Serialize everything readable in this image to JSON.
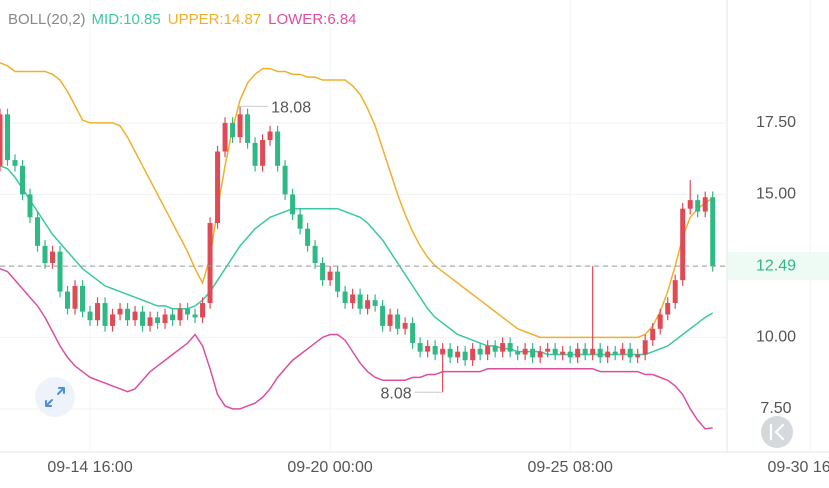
{
  "chart_data": {
    "type": "candlestick",
    "indicator": "BOLL(20,2)",
    "up_color": "#e04a55",
    "down_color": "#2fb985",
    "x": [
      0,
      1,
      2,
      3,
      4,
      5,
      6,
      7,
      8,
      9,
      10,
      11,
      12,
      13,
      14,
      15,
      16,
      17,
      18,
      19,
      20,
      21,
      22,
      23,
      24,
      25,
      26,
      27,
      28,
      29,
      30,
      31,
      32,
      33,
      34,
      35,
      36,
      37,
      38,
      39,
      40,
      41,
      42,
      43,
      44,
      45,
      46,
      47,
      48,
      49,
      50,
      51,
      52,
      53,
      54,
      55,
      56,
      57,
      58,
      59,
      60,
      61,
      62,
      63,
      64,
      65,
      66,
      67,
      68,
      69,
      70,
      71,
      72,
      73,
      74,
      75,
      76,
      77,
      78,
      79,
      80,
      81,
      82,
      83,
      84,
      85,
      86,
      87,
      88,
      89,
      90,
      91,
      92,
      93,
      94,
      95
    ],
    "open": [
      16.0,
      17.8,
      16.2,
      16.0,
      15.0,
      14.2,
      13.2,
      12.6,
      13.0,
      11.6,
      11.0,
      11.8,
      10.9,
      10.6,
      11.2,
      10.4,
      10.8,
      11.0,
      10.6,
      10.9,
      10.4,
      10.7,
      10.5,
      10.8,
      10.6,
      11.0,
      10.8,
      10.7,
      11.2,
      14.0,
      16.5,
      17.5,
      17.0,
      17.8,
      16.8,
      16.0,
      16.9,
      17.2,
      16.0,
      15.0,
      14.3,
      13.8,
      13.2,
      12.6,
      12.0,
      12.3,
      11.6,
      11.2,
      11.5,
      11.0,
      11.3,
      11.1,
      10.4,
      10.8,
      10.3,
      10.5,
      9.8,
      9.5,
      9.7,
      9.4,
      9.6,
      9.3,
      9.5,
      9.2,
      9.6,
      9.4,
      9.7,
      9.5,
      9.8,
      9.5,
      9.4,
      9.6,
      9.3,
      9.5,
      9.6,
      9.4,
      9.5,
      9.3,
      9.6,
      9.4,
      9.6,
      9.3,
      9.5,
      9.4,
      9.6,
      9.3,
      9.4,
      9.9,
      10.3,
      10.8,
      11.2,
      12.0,
      14.5,
      14.8,
      14.4,
      14.9
    ],
    "high": [
      18.0,
      18.0,
      16.4,
      16.2,
      15.2,
      14.4,
      13.4,
      13.2,
      13.2,
      11.8,
      12.0,
      12.0,
      11.1,
      11.4,
      11.4,
      11.0,
      11.2,
      11.2,
      11.1,
      11.1,
      10.9,
      10.9,
      11.0,
      11.0,
      11.2,
      11.2,
      11.0,
      11.4,
      14.2,
      16.7,
      17.7,
      17.7,
      18.08,
      18.0,
      17.0,
      17.1,
      17.4,
      17.4,
      16.2,
      15.2,
      14.5,
      14.0,
      13.4,
      12.8,
      12.5,
      12.5,
      11.8,
      11.7,
      11.7,
      11.5,
      11.5,
      11.3,
      11.0,
      11.0,
      10.7,
      10.7,
      10.0,
      9.9,
      9.9,
      9.8,
      9.8,
      9.7,
      9.7,
      9.8,
      9.8,
      9.9,
      9.9,
      10.0,
      10.0,
      9.7,
      9.8,
      9.8,
      9.7,
      9.8,
      9.8,
      9.7,
      9.7,
      9.8,
      9.8,
      12.49,
      9.8,
      9.7,
      9.7,
      9.8,
      9.8,
      9.6,
      10.1,
      10.5,
      11.0,
      11.4,
      12.2,
      14.7,
      15.5,
      15.0,
      15.1,
      15.1
    ],
    "low": [
      15.8,
      16.0,
      15.8,
      14.8,
      14.0,
      13.0,
      12.4,
      12.4,
      11.4,
      10.8,
      10.8,
      10.7,
      10.4,
      10.4,
      10.2,
      10.2,
      10.6,
      10.4,
      10.4,
      10.2,
      10.2,
      10.3,
      10.3,
      10.4,
      10.4,
      10.6,
      10.5,
      10.5,
      11.0,
      13.8,
      16.3,
      16.8,
      16.8,
      16.6,
      15.8,
      15.8,
      16.7,
      15.8,
      14.8,
      14.1,
      13.6,
      13.0,
      12.4,
      11.8,
      11.8,
      11.4,
      11.0,
      11.0,
      10.8,
      10.8,
      10.9,
      10.2,
      10.2,
      10.1,
      10.1,
      9.6,
      9.3,
      9.3,
      9.2,
      8.08,
      9.1,
      9.1,
      9.0,
      9.0,
      9.2,
      9.2,
      9.3,
      9.3,
      9.3,
      9.2,
      9.2,
      9.1,
      9.1,
      9.3,
      9.2,
      9.2,
      9.1,
      9.1,
      9.2,
      9.2,
      9.1,
      9.1,
      9.2,
      9.2,
      9.1,
      9.1,
      9.2,
      9.7,
      10.1,
      10.6,
      11.0,
      11.8,
      14.3,
      14.2,
      14.2,
      12.3
    ],
    "close": [
      17.8,
      16.2,
      16.0,
      15.0,
      14.2,
      13.2,
      12.6,
      13.0,
      11.6,
      11.0,
      11.8,
      10.9,
      10.6,
      11.2,
      10.4,
      10.8,
      11.0,
      10.6,
      10.9,
      10.4,
      10.7,
      10.5,
      10.8,
      10.6,
      11.0,
      10.8,
      10.7,
      11.2,
      14.0,
      16.5,
      17.5,
      17.0,
      17.8,
      16.8,
      16.0,
      16.9,
      17.2,
      16.0,
      15.0,
      14.3,
      13.8,
      13.2,
      12.6,
      12.0,
      12.3,
      11.6,
      11.2,
      11.5,
      11.0,
      11.3,
      11.1,
      10.4,
      10.8,
      10.3,
      10.5,
      9.8,
      9.5,
      9.7,
      9.4,
      9.6,
      9.3,
      9.5,
      9.2,
      9.6,
      9.4,
      9.7,
      9.5,
      9.8,
      9.5,
      9.4,
      9.6,
      9.3,
      9.5,
      9.6,
      9.4,
      9.5,
      9.3,
      9.6,
      9.4,
      9.6,
      9.3,
      9.5,
      9.4,
      9.6,
      9.3,
      9.4,
      9.9,
      10.3,
      10.8,
      11.2,
      12.0,
      14.5,
      14.8,
      14.4,
      14.9,
      12.49
    ],
    "series": [
      {
        "name": "MID:10.85",
        "color": "#3cc8a4",
        "values": [
          16.0,
          15.9,
          15.6,
          15.2,
          14.8,
          14.4,
          14.0,
          13.6,
          13.3,
          13.0,
          12.7,
          12.4,
          12.2,
          12.0,
          11.8,
          11.7,
          11.6,
          11.5,
          11.4,
          11.3,
          11.2,
          11.1,
          11.1,
          11.0,
          11.0,
          11.0,
          11.1,
          11.3,
          11.6,
          12.0,
          12.4,
          12.8,
          13.2,
          13.5,
          13.8,
          14.0,
          14.2,
          14.3,
          14.4,
          14.5,
          14.5,
          14.5,
          14.5,
          14.5,
          14.5,
          14.5,
          14.4,
          14.3,
          14.2,
          14.0,
          13.7,
          13.4,
          13.0,
          12.6,
          12.2,
          11.8,
          11.4,
          11.0,
          10.7,
          10.5,
          10.3,
          10.1,
          10.0,
          9.9,
          9.8,
          9.7,
          9.7,
          9.6,
          9.6,
          9.5,
          9.5,
          9.5,
          9.5,
          9.4,
          9.4,
          9.4,
          9.4,
          9.4,
          9.4,
          9.4,
          9.4,
          9.4,
          9.4,
          9.4,
          9.4,
          9.4,
          9.4,
          9.5,
          9.6,
          9.7,
          9.9,
          10.1,
          10.3,
          10.5,
          10.7,
          10.85
        ]
      },
      {
        "name": "UPPER:14.87",
        "color": "#efb12c",
        "values": [
          19.6,
          19.5,
          19.3,
          19.3,
          19.3,
          19.3,
          19.3,
          19.2,
          19.0,
          18.6,
          18.1,
          17.6,
          17.5,
          17.5,
          17.5,
          17.5,
          17.4,
          17.0,
          16.5,
          16.0,
          15.5,
          15.0,
          14.5,
          14.0,
          13.5,
          13.0,
          12.4,
          11.9,
          12.8,
          14.5,
          16.0,
          17.3,
          18.3,
          18.9,
          19.2,
          19.4,
          19.4,
          19.3,
          19.3,
          19.2,
          19.2,
          19.1,
          19.1,
          19.0,
          19.0,
          19.0,
          19.0,
          18.8,
          18.5,
          18.0,
          17.4,
          16.6,
          15.8,
          15.0,
          14.3,
          13.7,
          13.2,
          12.8,
          12.5,
          12.3,
          12.1,
          11.9,
          11.7,
          11.5,
          11.3,
          11.1,
          10.9,
          10.7,
          10.5,
          10.3,
          10.2,
          10.1,
          10.0,
          10.0,
          10.0,
          10.0,
          10.0,
          10.0,
          10.0,
          10.0,
          10.0,
          10.0,
          10.0,
          10.0,
          10.0,
          10.0,
          10.1,
          10.4,
          10.9,
          11.6,
          12.5,
          13.5,
          14.2,
          14.5,
          14.7,
          14.87
        ]
      },
      {
        "name": "LOWER:6.84",
        "color": "#dc4fa0",
        "values": [
          12.4,
          12.3,
          12.0,
          11.7,
          11.4,
          11.1,
          10.7,
          10.2,
          9.7,
          9.3,
          9.0,
          8.8,
          8.6,
          8.5,
          8.4,
          8.3,
          8.2,
          8.1,
          8.2,
          8.5,
          8.8,
          9.0,
          9.2,
          9.4,
          9.6,
          9.8,
          10.1,
          9.7,
          8.9,
          8.0,
          7.6,
          7.5,
          7.5,
          7.6,
          7.7,
          7.9,
          8.2,
          8.6,
          8.9,
          9.2,
          9.4,
          9.6,
          9.8,
          10.0,
          10.1,
          10.1,
          9.9,
          9.5,
          9.1,
          8.8,
          8.6,
          8.5,
          8.5,
          8.5,
          8.5,
          8.6,
          8.6,
          8.7,
          8.7,
          8.8,
          8.8,
          8.8,
          8.8,
          8.8,
          8.8,
          8.9,
          8.9,
          8.9,
          8.9,
          8.9,
          8.9,
          8.9,
          8.9,
          8.9,
          8.9,
          8.9,
          8.9,
          8.9,
          8.9,
          8.9,
          8.8,
          8.8,
          8.8,
          8.8,
          8.8,
          8.8,
          8.7,
          8.7,
          8.6,
          8.5,
          8.3,
          8.0,
          7.5,
          7.1,
          6.8,
          6.84
        ]
      }
    ],
    "annotations": [
      {
        "x": 32,
        "y": 18.08
      },
      {
        "x": 59,
        "y": 8.08
      }
    ],
    "last_price": 12.49,
    "xlim": [
      0,
      110.5
    ],
    "xticks": [
      {
        "value": 12,
        "label": "09-14 16:00"
      },
      {
        "value": 44,
        "label": "09-20 00:00"
      },
      {
        "value": 76,
        "label": "09-25 08:00"
      },
      {
        "value": 108,
        "label": "09-30 16:00"
      }
    ],
    "ylim": [
      6.06,
      20.75
    ],
    "yticks": [
      {
        "value": 7.5,
        "label": "7.50"
      },
      {
        "value": 10,
        "label": "10.00"
      },
      {
        "value": 12.5,
        "label": "12.50"
      },
      {
        "value": 15,
        "label": "15.00"
      },
      {
        "value": 17.5,
        "label": "17.50"
      }
    ],
    "grid": true
  }
}
